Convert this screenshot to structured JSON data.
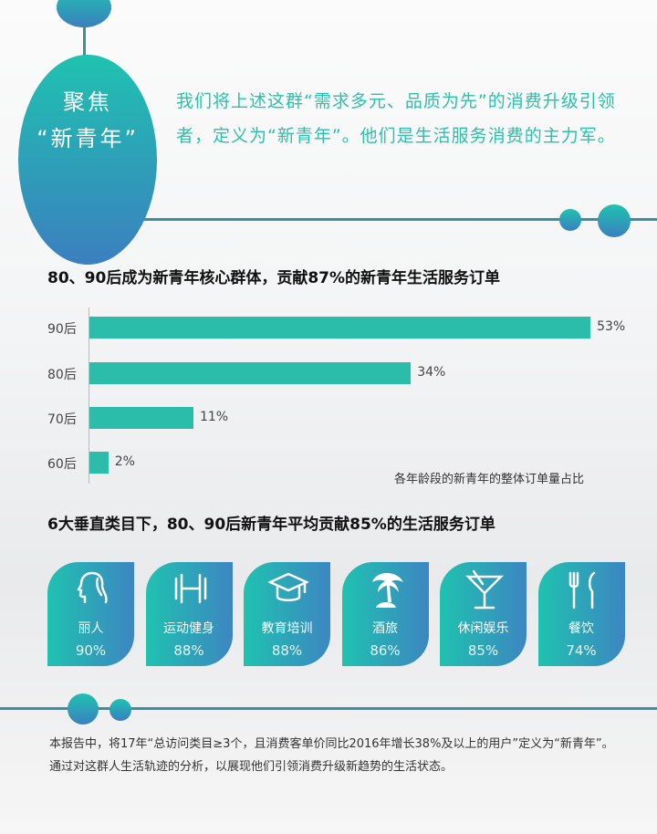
{
  "header": {
    "badge_line1": "聚焦",
    "badge_line2": "“新青年”",
    "intro": "我们将上述这群“需求多元、品质为先”的消费升级引领者，定义为“新青年”。他们是生活服务消费的主力军。"
  },
  "chart_data": [
    {
      "type": "bar",
      "orientation": "horizontal",
      "title": "80、90后成为新青年核心群体，贡献87%的新青年生活服务订单",
      "categories": [
        "90后",
        "80后",
        "70后",
        "60后"
      ],
      "values": [
        53,
        34,
        11,
        2
      ],
      "value_labels": [
        "53%",
        "34%",
        "11%",
        "2%"
      ],
      "unit": "%",
      "note": "各年龄段的新青年的整体订单量占比",
      "color": "#2cbcaa"
    },
    {
      "type": "table",
      "title": "6大垂直类目下，80、90后新青年平均贡献85%的生活服务订单",
      "categories": [
        "丽人",
        "运动健身",
        "教育培训",
        "酒旅",
        "休闲娱乐",
        "餐饮"
      ],
      "values": [
        90,
        88,
        88,
        86,
        85,
        74
      ],
      "value_labels": [
        "90%",
        "88%",
        "88%",
        "86%",
        "85%",
        "74%"
      ],
      "icons": [
        "woman-profile-icon",
        "dumbbell-icon",
        "graduation-cap-icon",
        "palm-tree-icon",
        "cocktail-icon",
        "fork-knife-icon"
      ]
    }
  ],
  "footer": {
    "text": "本报告中，将17年“总访问类目≥3个，且消费客单价同比2016年增长38%及以上的用户”定义为“新青年”。通过对这群人生活轨迹的分析，以展现他们引领消费升级新趋势的生活状态。"
  },
  "colors": {
    "teal": "#2cbcaa",
    "blue": "#3d86c2"
  }
}
